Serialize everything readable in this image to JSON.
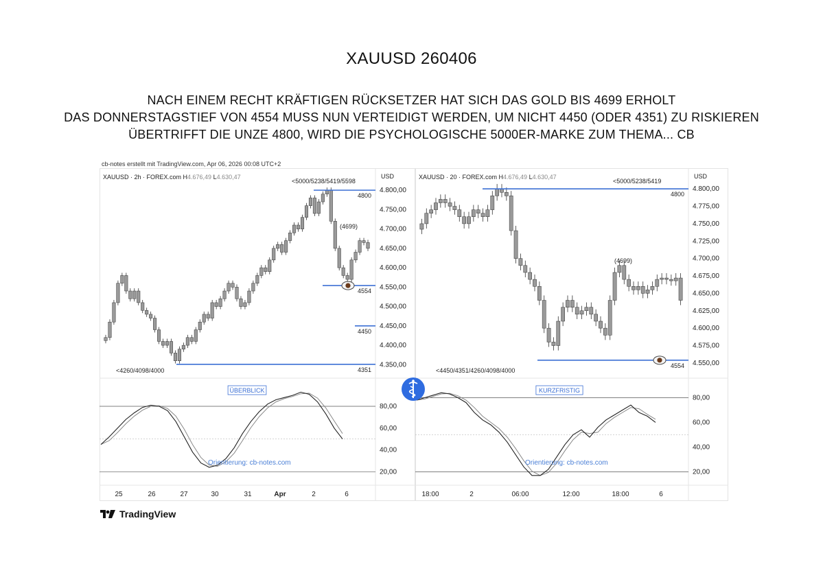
{
  "page": {
    "title": "XAUUSD 260406",
    "lines": [
      "NACH EINEM RECHT KRÄFTIGEN RÜCKSETZER HAT SICH DAS GOLD BIS 4699 ERHOLT",
      "DAS DONNERSTAGSTIEF VON 4554 MUSS NUN VERTEIDIGT WERDEN, UM NICHT 4450 (ODER 4351) ZU RISKIEREN",
      "ÜBERTRIFFT DIE UNZE 4800, WIRD DIE PSYCHOLOGISCHE 5000ER-MARKE ZUM THEMA... CB"
    ],
    "credit": "cb-notes erstellt mit TradingView.com, Apr 06, 2026 00:08 UTC+2",
    "brand": "TradingView"
  },
  "colors": {
    "level_line": "#3b6fd4",
    "candle": "#9a9a9a",
    "candle_border": "#333333",
    "osc_line": "#222222",
    "grid": "#555555"
  },
  "chart_data": [
    {
      "type": "bar",
      "symbol_label": "XAUUSD · 2h · FOREX.com",
      "h_prefix": "H",
      "h_value": "4.676,49",
      "l_prefix": "L",
      "l_value": "4.630,47",
      "currency": "USD",
      "y_ticks": [
        "4.800,00",
        "4.750,00",
        "4.700,00",
        "4.650,00",
        "4.600,00",
        "4.550,00",
        "4.500,00",
        "4.450,00",
        "4.400,00",
        "4.350,00"
      ],
      "ylim": [
        4340,
        4825
      ],
      "x_ticks": [
        "25",
        "26",
        "27",
        "30",
        "31",
        "Apr",
        "2",
        "6"
      ],
      "top_note": "<5000/5238/5419/5598",
      "bottom_note": "<4260/4098/4000",
      "levels": [
        {
          "label": "4800",
          "value": 4800
        },
        {
          "label": "4554",
          "value": 4554
        },
        {
          "label": "4450",
          "value": 4450
        },
        {
          "label": "4351",
          "value": 4351
        }
      ],
      "peak_label": "(4699)",
      "close": [
        4420,
        4460,
        4510,
        4560,
        4580,
        4540,
        4520,
        4540,
        4510,
        4490,
        4480,
        4470,
        4440,
        4410,
        4400,
        4410,
        4380,
        4360,
        4390,
        4400,
        4420,
        4410,
        4440,
        4460,
        4480,
        4470,
        4510,
        4500,
        4520,
        4540,
        4560,
        4550,
        4520,
        4500,
        4510,
        4540,
        4560,
        4580,
        4600,
        4590,
        4620,
        4650,
        4660,
        4640,
        4670,
        4690,
        4710,
        4700,
        4730,
        4760,
        4780,
        4740,
        4770,
        4790,
        4800,
        4720,
        4650,
        4600,
        4580,
        4570,
        4620,
        4640,
        4670,
        4665,
        4650
      ],
      "oscillator": {
        "label": "ÜBERBLICK",
        "watermark": "Orientierung: cb-notes.com",
        "y_ticks": [
          "80,00",
          "60,00",
          "40,00",
          "20,00"
        ],
        "ylim": [
          12,
          97
        ],
        "bands": [
          80,
          20
        ],
        "values": [
          45,
          52,
          60,
          68,
          74,
          79,
          81,
          80,
          76,
          66,
          52,
          38,
          28,
          24,
          26,
          32,
          42,
          55,
          66,
          75,
          82,
          86,
          88,
          90,
          93,
          91,
          84,
          73,
          60,
          50
        ]
      }
    },
    {
      "type": "bar",
      "symbol_label": "XAUUSD · 20 · FOREX.com",
      "h_prefix": "H",
      "h_value": "4.676,49",
      "l_prefix": "L",
      "l_value": "4.630,47",
      "currency": "USD",
      "y_ticks": [
        "4.800,00",
        "4.775,00",
        "4.750,00",
        "4.725,00",
        "4.700,00",
        "4.675,00",
        "4.650,00",
        "4.625,00",
        "4.600,00",
        "4.575,00",
        "4.550,00"
      ],
      "ylim": [
        4542,
        4812
      ],
      "x_ticks": [
        "18:00",
        "2",
        "06:00",
        "12:00",
        "18:00",
        "6"
      ],
      "top_note": "<5000/5238/5419",
      "bottom_note": "<4450/4351/4260/4098/4000",
      "levels": [
        {
          "label": "4800",
          "value": 4800
        },
        {
          "label": "4554",
          "value": 4554
        }
      ],
      "peak_label": "(4699)",
      "close": [
        4750,
        4765,
        4770,
        4780,
        4785,
        4780,
        4775,
        4770,
        4760,
        4750,
        4760,
        4770,
        4765,
        4760,
        4770,
        4790,
        4800,
        4795,
        4790,
        4740,
        4700,
        4690,
        4680,
        4670,
        4660,
        4640,
        4600,
        4580,
        4575,
        4610,
        4630,
        4640,
        4630,
        4620,
        4625,
        4630,
        4620,
        4610,
        4600,
        4590,
        4640,
        4680,
        4690,
        4670,
        4660,
        4655,
        4660,
        4650,
        4655,
        4660,
        4670,
        4672,
        4670,
        4668,
        4672,
        4640
      ],
      "oscillator": {
        "label": "KURZFRISTIG",
        "watermark": "Orientierung: cb-notes.com",
        "y_ticks": [
          "80,00",
          "60,00",
          "40,00",
          "20,00"
        ],
        "ylim": [
          13,
          88
        ],
        "bands": [
          80,
          20
        ],
        "values": [
          78,
          80,
          82,
          84,
          83,
          80,
          76,
          68,
          62,
          58,
          52,
          44,
          34,
          24,
          17,
          17,
          22,
          32,
          42,
          50,
          54,
          48,
          56,
          62,
          66,
          70,
          74,
          68,
          65,
          60
        ]
      }
    }
  ]
}
